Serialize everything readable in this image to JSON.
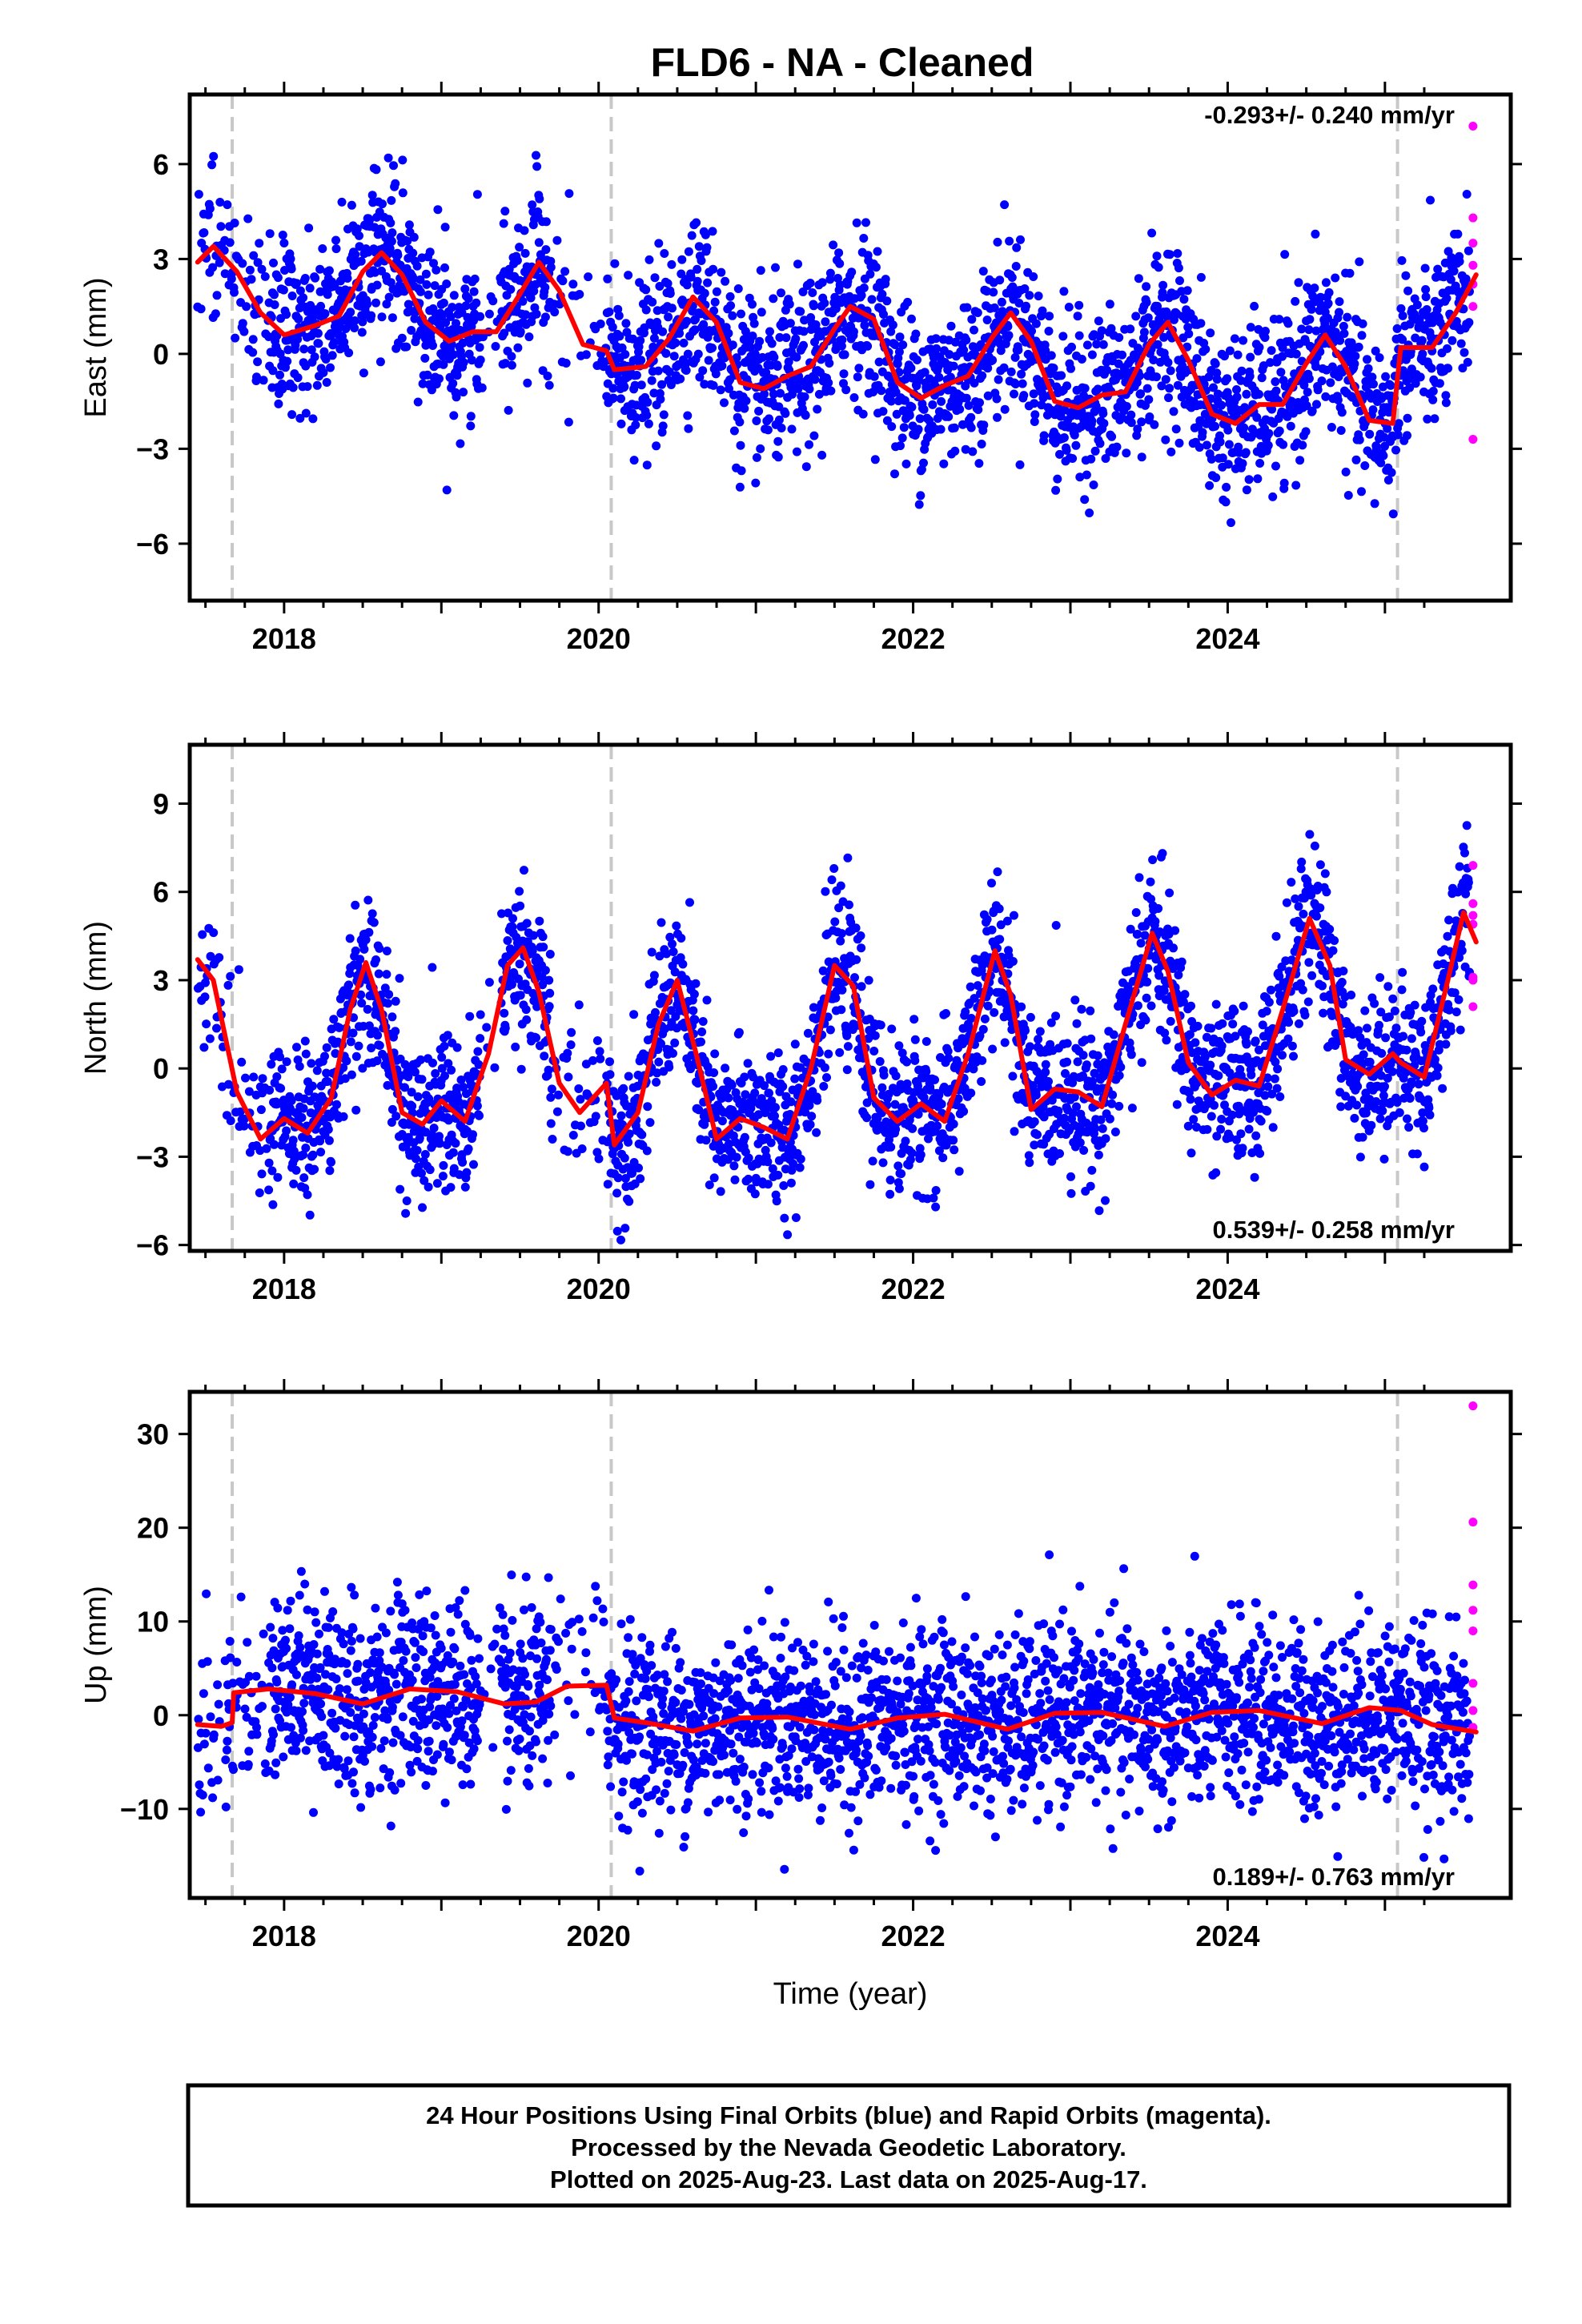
{
  "title": "FLD6  - NA - Cleaned",
  "footer": {
    "line1": "24 Hour Positions Using Final Orbits (blue) and Rapid Orbits (magenta).",
    "line2": "Processed by the Nevada Geodetic Laboratory.",
    "line3": "Plotted on 2025-Aug-23. Last data on 2025-Aug-17."
  },
  "chart_data": [
    {
      "type": "scatter",
      "ylabel": "East (mm)",
      "xlabel": "",
      "xlim": [
        2017.4,
        2025.8
      ],
      "ylim": [
        -7.8,
        8.2
      ],
      "yticks": [
        -6,
        -3,
        0,
        3,
        6
      ],
      "yticklabels": [
        "−6",
        "−3",
        "0",
        "3",
        "6"
      ],
      "xticks": [
        2018,
        2020,
        2022,
        2024
      ],
      "xticklabels": [
        "2018",
        "2020",
        "2022",
        "2024"
      ],
      "rate_text": "-0.293+/- 0.240 mm/yr",
      "rate_position": "top-right",
      "offsets": [
        2017.67,
        2020.08,
        2025.08
      ],
      "colors": {
        "final": "#0000ff",
        "rapid": "#ff00ff",
        "model": "#ff0000",
        "offset": "#c8c8c8"
      },
      "model": {
        "x": [
          2017.45,
          2017.55,
          2017.7,
          2017.85,
          2018.0,
          2018.2,
          2018.35,
          2018.5,
          2018.62,
          2018.75,
          2018.9,
          2019.05,
          2019.2,
          2019.35,
          2019.5,
          2019.62,
          2019.75,
          2019.9,
          2020.05,
          2020.1,
          2020.3,
          2020.45,
          2020.6,
          2020.75,
          2020.9,
          2021.05,
          2021.2,
          2021.35,
          2021.5,
          2021.6,
          2021.75,
          2021.9,
          2022.05,
          2022.2,
          2022.35,
          2022.5,
          2022.62,
          2022.75,
          2022.9,
          2023.05,
          2023.2,
          2023.35,
          2023.5,
          2023.62,
          2023.75,
          2023.9,
          2024.05,
          2024.2,
          2024.35,
          2024.5,
          2024.62,
          2024.75,
          2024.9,
          2025.05,
          2025.1,
          2025.3,
          2025.45,
          2025.58
        ],
        "y": [
          2.9,
          3.4,
          2.6,
          1.3,
          0.6,
          0.9,
          1.2,
          2.6,
          3.2,
          2.5,
          1.0,
          0.4,
          0.7,
          0.7,
          1.9,
          2.9,
          2.0,
          0.3,
          0.1,
          -0.5,
          -0.4,
          0.5,
          1.8,
          1.0,
          -0.9,
          -1.1,
          -0.7,
          -0.4,
          0.8,
          1.5,
          1.1,
          -0.9,
          -1.4,
          -1.0,
          -0.7,
          0.5,
          1.3,
          0.4,
          -1.5,
          -1.7,
          -1.3,
          -1.2,
          0.3,
          1.0,
          -0.2,
          -1.9,
          -2.2,
          -1.6,
          -1.6,
          -0.3,
          0.6,
          -0.4,
          -2.1,
          -2.2,
          0.2,
          0.2,
          1.3,
          2.5
        ]
      },
      "rapid": {
        "x": [
          2025.56,
          2025.56,
          2025.56,
          2025.56,
          2025.56,
          2025.56,
          2025.56
        ],
        "y": [
          7.2,
          4.3,
          3.5,
          2.8,
          2.2,
          1.5,
          -2.7
        ]
      },
      "final_points": "approx. 2800 daily solutions, ~1 per day; seasonal amplitude ~1.5 mm, scatter ~1.3 mm rms"
    },
    {
      "type": "scatter",
      "ylabel": "North (mm)",
      "xlabel": "",
      "xlim": [
        2017.4,
        2025.8
      ],
      "ylim": [
        -6.2,
        11.0
      ],
      "yticks": [
        -6,
        -3,
        0,
        3,
        6,
        9
      ],
      "yticklabels": [
        "−6",
        "−3",
        "0",
        "3",
        "6",
        "9"
      ],
      "xticks": [
        2018,
        2020,
        2022,
        2024
      ],
      "xticklabels": [
        "2018",
        "2020",
        "2022",
        "2024"
      ],
      "rate_text": "0.539+/- 0.258 mm/yr",
      "rate_position": "bottom-right",
      "offsets": [
        2017.67,
        2020.08,
        2025.08
      ],
      "colors": {
        "final": "#0000ff",
        "rapid": "#ff00ff",
        "model": "#ff0000",
        "offset": "#c8c8c8"
      },
      "model": {
        "x": [
          2017.45,
          2017.55,
          2017.7,
          2017.85,
          2018.0,
          2018.15,
          2018.3,
          2018.42,
          2018.52,
          2018.62,
          2018.75,
          2018.88,
          2019.0,
          2019.15,
          2019.3,
          2019.42,
          2019.52,
          2019.62,
          2019.75,
          2019.88,
          2020.05,
          2020.1,
          2020.25,
          2020.38,
          2020.5,
          2020.62,
          2020.75,
          2020.9,
          2021.05,
          2021.2,
          2021.35,
          2021.5,
          2021.62,
          2021.75,
          2021.9,
          2022.05,
          2022.2,
          2022.35,
          2022.52,
          2022.62,
          2022.75,
          2022.9,
          2023.05,
          2023.2,
          2023.35,
          2023.52,
          2023.62,
          2023.75,
          2023.9,
          2024.05,
          2024.2,
          2024.35,
          2024.52,
          2024.65,
          2024.75,
          2024.9,
          2025.05,
          2025.1,
          2025.25,
          2025.4,
          2025.5,
          2025.58
        ],
        "y": [
          3.7,
          3.0,
          -0.8,
          -2.4,
          -1.7,
          -2.2,
          -1.0,
          2.0,
          3.6,
          2.0,
          -1.5,
          -1.9,
          -1.1,
          -1.8,
          0.5,
          3.5,
          4.1,
          2.6,
          -0.5,
          -1.5,
          -0.5,
          -2.6,
          -1.5,
          1.5,
          3.0,
          0.5,
          -2.4,
          -1.7,
          -2.0,
          -2.4,
          0.0,
          3.5,
          2.8,
          -1.0,
          -1.8,
          -1.2,
          -1.8,
          0.5,
          4.0,
          2.5,
          -1.4,
          -0.7,
          -0.8,
          -1.3,
          1.5,
          4.6,
          3.3,
          0.2,
          -0.9,
          -0.4,
          -0.6,
          2.0,
          5.1,
          3.5,
          0.3,
          -0.2,
          0.5,
          0.2,
          -0.3,
          3.0,
          5.3,
          4.3
        ]
      },
      "rapid": {
        "x": [
          2025.56,
          2025.56,
          2025.56,
          2025.56,
          2025.56,
          2025.56,
          2025.56
        ],
        "y": [
          6.9,
          5.6,
          5.2,
          4.9,
          3.1,
          3.0,
          2.1
        ]
      },
      "final_points": "approx. 2800 daily solutions, ~1 per day; seasonal amplitude ~3 mm, scatter ~1.3 mm rms"
    },
    {
      "type": "scatter",
      "ylabel": "Up (mm)",
      "xlabel": "Time (year)",
      "xlim": [
        2017.4,
        2025.8
      ],
      "ylim": [
        -19.5,
        34.5
      ],
      "yticks": [
        -10,
        0,
        10,
        20,
        30
      ],
      "yticklabels": [
        "−10",
        "0",
        "10",
        "20",
        "30"
      ],
      "xticks": [
        2018,
        2020,
        2022,
        2024
      ],
      "xticklabels": [
        "2018",
        "2020",
        "2022",
        "2024"
      ],
      "rate_text": "0.189+/- 0.763 mm/yr",
      "rate_position": "bottom-right",
      "offsets": [
        2017.67,
        2020.08,
        2025.08
      ],
      "colors": {
        "final": "#0000ff",
        "rapid": "#ff00ff",
        "model": "#ff0000",
        "offset": "#c8c8c8"
      },
      "model": {
        "x": [
          2017.45,
          2017.6,
          2017.67,
          2017.68,
          2017.9,
          2018.2,
          2018.5,
          2018.8,
          2019.1,
          2019.4,
          2019.6,
          2019.8,
          2020.05,
          2020.1,
          2020.3,
          2020.6,
          2020.9,
          2021.2,
          2021.6,
          2021.9,
          2022.2,
          2022.6,
          2022.9,
          2023.2,
          2023.6,
          2023.9,
          2024.2,
          2024.6,
          2024.9,
          2025.1,
          2025.3,
          2025.58
        ],
        "y": [
          -1.0,
          -1.2,
          -0.8,
          2.4,
          2.8,
          2.3,
          1.2,
          2.8,
          2.5,
          1.2,
          1.4,
          3.1,
          3.2,
          -0.3,
          -0.8,
          -1.7,
          -0.3,
          -0.2,
          -1.5,
          -0.3,
          0.1,
          -1.5,
          0.2,
          0.3,
          -1.2,
          0.3,
          0.5,
          -0.9,
          0.8,
          0.5,
          -1.0,
          -1.8
        ]
      },
      "rapid": {
        "x": [
          2025.56,
          2025.56,
          2025.56,
          2025.56,
          2025.56,
          2025.56,
          2025.56,
          2025.56
        ],
        "y": [
          33.0,
          20.6,
          13.9,
          11.2,
          9.0,
          3.4,
          0.5,
          -1.3
        ]
      },
      "final_points": "approx. 2800 daily solutions, ~1 per day; scatter ~5 mm rms"
    }
  ]
}
